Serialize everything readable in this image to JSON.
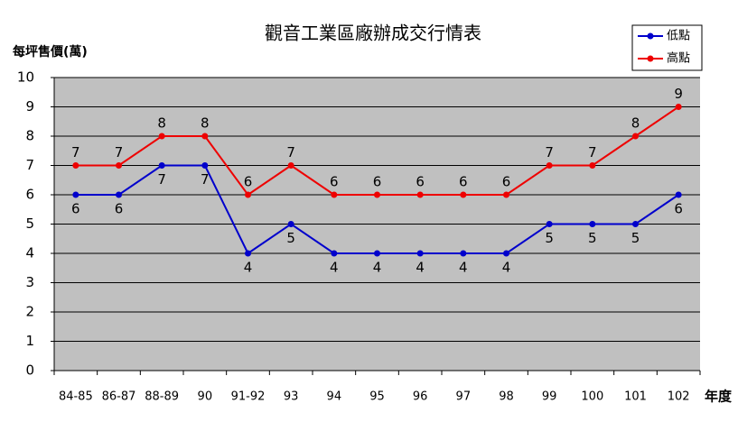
{
  "chart_data": {
    "type": "line",
    "title": "觀音工業區廠辦成交行情表",
    "y_label": "每坪售價(萬)",
    "x_label": "年度",
    "categories": [
      "84-85",
      "86-87",
      "88-89",
      "90",
      "91-92",
      "93",
      "94",
      "95",
      "96",
      "97",
      "98",
      "99",
      "100",
      "101",
      "102"
    ],
    "series": [
      {
        "name": "低點",
        "color": "#0000cc",
        "values": [
          6,
          6,
          7,
          7,
          4,
          5,
          4,
          4,
          4,
          4,
          4,
          5,
          5,
          5,
          6
        ]
      },
      {
        "name": "高點",
        "color": "#ee0000",
        "values": [
          7,
          7,
          8,
          8,
          6,
          7,
          6,
          6,
          6,
          6,
          6,
          7,
          7,
          8,
          9
        ]
      }
    ],
    "ylim": [
      0,
      10
    ],
    "yticks": [
      0,
      1,
      2,
      3,
      4,
      5,
      6,
      7,
      8,
      9,
      10
    ],
    "grid": true
  }
}
